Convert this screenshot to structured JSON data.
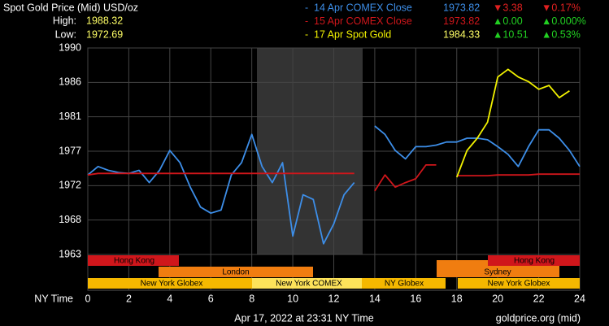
{
  "chart_data": {
    "type": "line",
    "title": "Spot Gold Price (Mid) USD/oz",
    "high_label": "High:",
    "high": 1988.32,
    "low_label": "Low:",
    "low": 1972.69,
    "x_label": "NY Time",
    "timestamp": "Apr 17, 2022 at 23:31 NY Time",
    "source": "goldprice.org (mid)",
    "sessions": [
      "Hong Kong",
      "Hong Kong",
      "London",
      "Sydney",
      "New York Globex",
      "New York COMEX",
      "NY Globex",
      "New York Globex"
    ],
    "xlim": [
      0,
      24
    ],
    "xticks": [
      0,
      2,
      4,
      6,
      8,
      10,
      12,
      14,
      16,
      18,
      20,
      22,
      24
    ],
    "ylim": [
      1963,
      1990
    ],
    "yticks": [
      1963,
      {
        "value": 1967.5,
        "label": "1968"
      },
      1972,
      {
        "value": 1976.5,
        "label": "1977"
      },
      1981,
      {
        "value": 1985.5,
        "label": "1986"
      },
      1990
    ],
    "grid": true,
    "x": [
      0,
      0.5,
      1,
      1.5,
      2,
      2.5,
      3,
      3.5,
      4,
      4.5,
      5,
      5.5,
      6,
      6.5,
      7,
      7.5,
      8,
      8.5,
      9,
      9.5,
      10,
      10.5,
      11,
      11.5,
      12,
      12.5,
      13,
      13.5,
      14,
      14.5,
      15,
      15.5,
      16,
      16.5,
      17,
      17.5,
      18,
      18.5,
      19,
      19.5,
      20,
      20.5,
      21,
      21.5,
      22,
      22.5,
      23,
      23.5,
      24
    ],
    "series": [
      {
        "name": "14 Apr COMEX Close",
        "color": "#3d8ee8",
        "close": 1973.82,
        "change": "▼3.38",
        "change_pct": "▼0.17%",
        "values": [
          1973.4,
          1974.5,
          1974.0,
          1973.7,
          1973.6,
          1974.0,
          1972.4,
          1974.0,
          1976.6,
          1975.0,
          1971.8,
          1969.2,
          1968.4,
          1968.8,
          1973.4,
          1975.0,
          1978.7,
          1974.5,
          1972.4,
          1975.0,
          1965.4,
          1970.8,
          1970.2,
          1964.4,
          1967.0,
          1970.8,
          1972.4,
          null,
          1979.8,
          1978.7,
          1976.6,
          1975.5,
          1977.1,
          1977.1,
          1977.3,
          1977.7,
          1977.7,
          1978.2,
          1978.2,
          1978.0,
          1977.1,
          1976.1,
          1974.5,
          1977.1,
          1979.3,
          1979.3,
          1978.2,
          1976.6,
          1974.5
        ]
      },
      {
        "name": "15 Apr COMEX Close",
        "color": "#d0161b",
        "close": 1973.82,
        "change": "▲0.00",
        "change_pct": "▲0.000%",
        "values": [
          1973.4,
          1973.6,
          1973.6,
          1973.6,
          1973.6,
          1973.6,
          1973.6,
          1973.6,
          1973.6,
          1973.6,
          1973.6,
          1973.6,
          1973.6,
          1973.6,
          1973.6,
          1973.6,
          1973.6,
          1973.6,
          1973.6,
          1973.6,
          1973.6,
          1973.6,
          1973.6,
          1973.6,
          1973.6,
          1973.6,
          1973.6,
          null,
          1971.3,
          1973.4,
          1971.8,
          1972.4,
          1972.9,
          1974.7,
          1974.7,
          null,
          1973.3,
          1973.3,
          1973.3,
          1973.3,
          1973.4,
          1973.4,
          1973.4,
          1973.4,
          1973.5,
          1973.5,
          1973.5,
          1973.5,
          1973.5
        ]
      },
      {
        "name": "17 Apr Spot Gold",
        "color": "#f2f200",
        "close": 1984.33,
        "change": "▲10.51",
        "change_pct": "▲0.53%",
        "values": [
          null,
          null,
          null,
          null,
          null,
          null,
          null,
          null,
          null,
          null,
          null,
          null,
          null,
          null,
          null,
          null,
          null,
          null,
          null,
          null,
          null,
          null,
          null,
          null,
          null,
          null,
          null,
          null,
          null,
          null,
          null,
          null,
          null,
          null,
          null,
          null,
          1973.1,
          1976.6,
          1978.2,
          1980.3,
          1986.2,
          1987.2,
          1986.2,
          1985.6,
          1984.6,
          1985.1,
          1983.5,
          1984.4,
          null
        ]
      }
    ]
  }
}
